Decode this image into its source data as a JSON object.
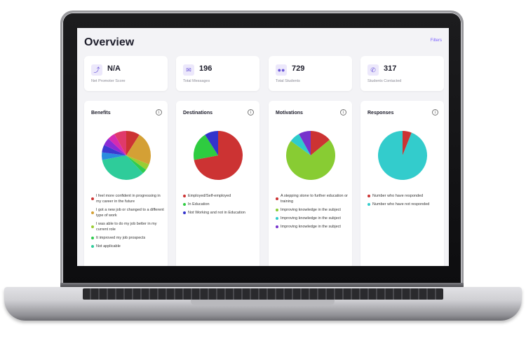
{
  "page": {
    "title": "Overview",
    "filters_label": "Filters"
  },
  "stats": [
    {
      "value": "N/A",
      "label": "Net Promoter Score",
      "icon": "trend-icon"
    },
    {
      "value": "196",
      "label": "Total Messages",
      "icon": "message-icon"
    },
    {
      "value": "729",
      "label": "Total Students",
      "icon": "users-icon"
    },
    {
      "value": "317",
      "label": "Students Contacted",
      "icon": "contact-icon"
    }
  ],
  "cards": [
    {
      "title": "Benefits",
      "slices": [
        {
          "value": 9,
          "color": "#cc3333"
        },
        {
          "value": 22,
          "color": "#d4a035"
        },
        {
          "value": 4,
          "color": "#9acd32"
        },
        {
          "value": 3,
          "color": "#2ecc4e"
        },
        {
          "value": 34,
          "color": "#2ecc9a"
        },
        {
          "value": 5,
          "color": "#2a8cde"
        },
        {
          "value": 5,
          "color": "#3a3ad0"
        },
        {
          "value": 5,
          "color": "#8a2bd6"
        },
        {
          "value": 5,
          "color": "#d62bb0"
        },
        {
          "value": 8,
          "color": "#e03a6a"
        }
      ],
      "legend": [
        {
          "label": "I feel more confident in progressing in my career in the future",
          "color": "#cc3333"
        },
        {
          "label": "I got a new job or changed to a different type of work",
          "color": "#d4a035"
        },
        {
          "label": "I was able to do my job better in my current role",
          "color": "#9acd32"
        },
        {
          "label": "It improved my job prospects",
          "color": "#2ecc4e"
        },
        {
          "label": "Not applicable",
          "color": "#2ecc9a"
        }
      ]
    },
    {
      "title": "Destinations",
      "slices": [
        {
          "value": 72,
          "color": "#cc3333"
        },
        {
          "value": 19,
          "color": "#2ecc40"
        },
        {
          "value": 9,
          "color": "#3333cc"
        }
      ],
      "legend": [
        {
          "label": "Employed/Self-employed",
          "color": "#cc3333"
        },
        {
          "label": "In Education",
          "color": "#2ecc40"
        },
        {
          "label": "Not Working and not in Education",
          "color": "#3333cc"
        }
      ]
    },
    {
      "title": "Motivations",
      "slices": [
        {
          "value": 14,
          "color": "#cc3333"
        },
        {
          "value": 71,
          "color": "#88cc33"
        },
        {
          "value": 7,
          "color": "#2ecccc"
        },
        {
          "value": 8,
          "color": "#7733cc"
        }
      ],
      "legend": [
        {
          "label": "A stepping stone to further education or training",
          "color": "#cc3333"
        },
        {
          "label": "Improving knowledge in the subject",
          "color": "#88cc33"
        },
        {
          "label": "Improving knowledge in the subject",
          "color": "#2ecccc"
        },
        {
          "label": "Improving knowledge in the subject",
          "color": "#7733cc"
        }
      ]
    },
    {
      "title": "Responses",
      "slices": [
        {
          "value": 6,
          "color": "#cc3333"
        },
        {
          "value": 94,
          "color": "#33cccc"
        }
      ],
      "legend": [
        {
          "label": "Number who have responded",
          "color": "#cc3333"
        },
        {
          "label": "Number who have not responded",
          "color": "#33cccc"
        }
      ]
    }
  ]
}
